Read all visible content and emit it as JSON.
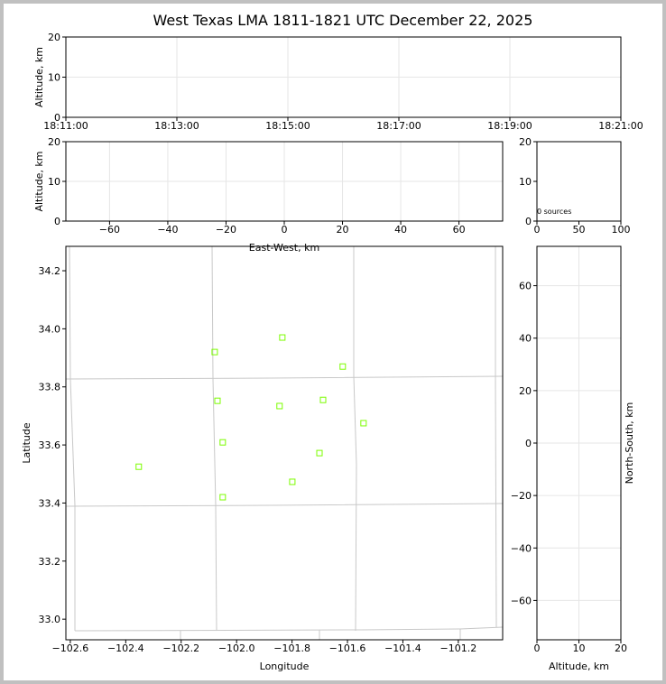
{
  "chart_data": [
    {
      "type": "scatter",
      "title": "West Texas LMA 1811-1821 UTC December 22, 2025",
      "ylabel": "Altitude, km",
      "xlim": [
        "18:11:00",
        "18:21:00"
      ],
      "xticks": [
        "18:11:00",
        "18:13:00",
        "18:15:00",
        "18:17:00",
        "18:19:00",
        "18:21:00"
      ],
      "ylim": [
        0,
        20
      ],
      "yticks": [
        0,
        10,
        20
      ],
      "grid": true
    },
    {
      "type": "scatter",
      "xlabel": "East-West, km",
      "ylabel": "Altitude, km",
      "xlim": [
        -75,
        75
      ],
      "xticks": [
        {
          "value": -60,
          "label": "−60"
        },
        {
          "value": -40,
          "label": "−40"
        },
        {
          "value": -20,
          "label": "−20"
        },
        0,
        20,
        40,
        60
      ],
      "ylim": [
        0,
        20
      ],
      "yticks": [
        0,
        10,
        20
      ],
      "grid": true
    },
    {
      "type": "scatter",
      "annotation": "0 sources",
      "xlim": [
        0,
        100
      ],
      "xticks": [
        0,
        50,
        100
      ],
      "ylim": [
        0,
        20
      ],
      "yticks": [
        0,
        10,
        20
      ],
      "grid": false
    },
    {
      "type": "scatter",
      "xlabel": "Longitude",
      "ylabel": "Latitude",
      "xlim": [
        -102.616,
        -101.04
      ],
      "xticks": [
        {
          "value": -102.6,
          "label": "−102.6"
        },
        {
          "value": -102.4,
          "label": "−102.4"
        },
        {
          "value": -102.2,
          "label": "−102.2"
        },
        {
          "value": -102.0,
          "label": "−102.0"
        },
        {
          "value": -101.8,
          "label": "−101.8"
        },
        {
          "value": -101.6,
          "label": "−101.6"
        },
        {
          "value": -101.4,
          "label": "−101.4"
        },
        {
          "value": -101.2,
          "label": "−101.2"
        }
      ],
      "ylim": [
        32.929,
        34.284
      ],
      "yticks": [
        {
          "value": 33,
          "label": "33.0"
        },
        33.2,
        33.4,
        33.6,
        33.8,
        {
          "value": 34,
          "label": "34.0"
        },
        34.2
      ],
      "grid": false,
      "series": [
        {
          "color": "#7cfc00",
          "x": [
            -102.079,
            -101.835,
            -101.617,
            -102.069,
            -101.845,
            -101.688,
            -101.542,
            -102.05,
            -102.353,
            -101.701,
            -101.799,
            -102.05
          ],
          "values": [
            33.92,
            33.97,
            33.87,
            33.752,
            33.734,
            33.755,
            33.675,
            33.609,
            33.525,
            33.572,
            33.473,
            33.42
          ]
        }
      ]
    },
    {
      "type": "scatter",
      "xlabel": "Altitude, km",
      "ylabel": "North-South, km",
      "ylabel_position": "right",
      "xlim": [
        0,
        20
      ],
      "xticks": [
        0,
        10,
        20
      ],
      "ylim": [
        -75,
        75
      ],
      "yticks": [
        {
          "value": -60,
          "label": "−60"
        },
        {
          "value": -40,
          "label": "−40"
        },
        {
          "value": -20,
          "label": "−20"
        },
        0,
        20,
        40,
        60
      ],
      "grid": true
    }
  ]
}
